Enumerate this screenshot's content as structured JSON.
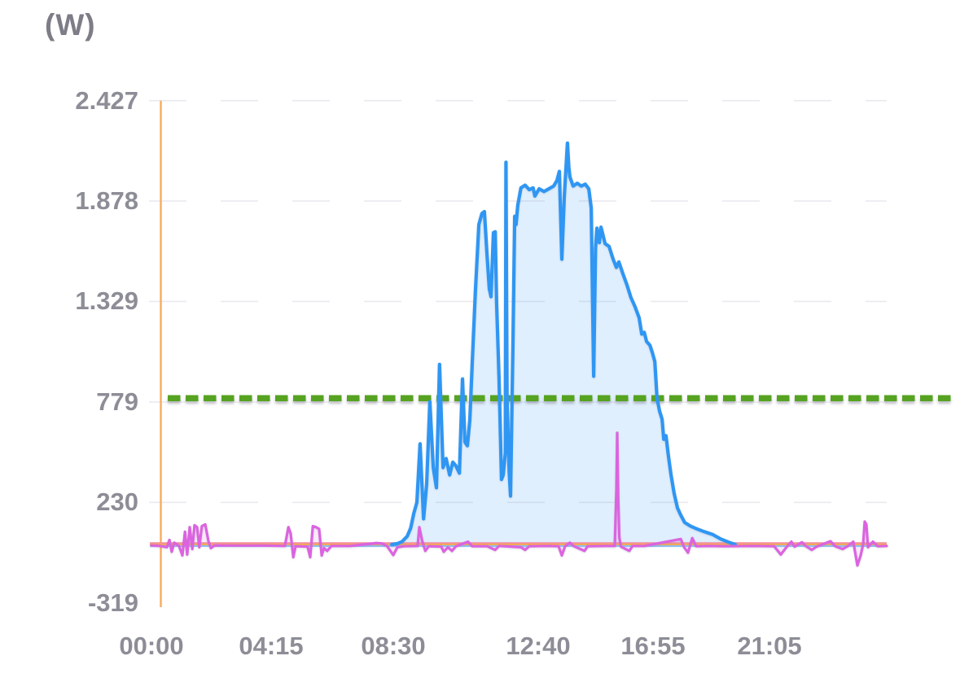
{
  "chart": {
    "unit_label": "(W)",
    "y_axis": {
      "ticks": [
        {
          "label": "2.427",
          "value": 2427,
          "grid": true
        },
        {
          "label": "1.878",
          "value": 1878,
          "grid": true
        },
        {
          "label": "1.329",
          "value": 1329,
          "grid": true
        },
        {
          "label": "779",
          "value": 779,
          "grid": true
        },
        {
          "label": "230",
          "value": 230,
          "grid": true
        },
        {
          "label": "-319",
          "value": -319,
          "grid": false
        }
      ]
    },
    "x_axis": {
      "ticks": [
        {
          "label": "00:00",
          "hour": 0
        },
        {
          "label": "04:15",
          "hour": 4.25
        },
        {
          "label": "08:30",
          "hour": 8.5
        },
        {
          "label": "12:40",
          "hour": 12.6667
        },
        {
          "label": "16:55",
          "hour": 16.9167
        },
        {
          "label": "21:05",
          "hour": 21.0833
        }
      ]
    }
  },
  "chart_data": {
    "type": "line",
    "title": "",
    "ylabel": "(W)",
    "xlabel": "",
    "x_unit": "hours_of_day",
    "y_unit": "W",
    "ylim": [
      -319,
      2427
    ],
    "grid_step": 549,
    "grid_style": "dashed",
    "legend": "none",
    "colors": {
      "axis_orange": "#F8AB5E",
      "gridline": "#E9E9EF",
      "tick_text": "#8D8D97",
      "blue_line": "#2F96F3",
      "blue_fill": "rgba(47,150,243,0.15)",
      "magenta_line": "#DC63DF",
      "magenta_fill": "rgba(220,99,223,0.13)",
      "threshold_green": "#55A320",
      "flat_salmon": "#F28E9E",
      "flat_orange": "#F8A94E",
      "flat_lightblue": "#8FBFEF"
    },
    "threshold": {
      "name": "green-dashed-threshold",
      "value": 800,
      "color": "#55A320",
      "style": "dashed"
    },
    "flat_series": [
      {
        "name": "flat-line-salmon",
        "color": "#F28E9E",
        "value": 0
      },
      {
        "name": "flat-line-orange",
        "color": "#F8A94E",
        "value": 0
      },
      {
        "name": "flat-line-lightblue",
        "color": "#8FBFEF",
        "value": 0
      }
    ],
    "series": [
      {
        "name": "blue-area-series",
        "color": "#2F96F3",
        "fill": "rgba(47,150,243,0.15)",
        "width": 4.2,
        "points": [
          [
            8.45,
            0
          ],
          [
            8.62,
            5
          ],
          [
            8.75,
            15
          ],
          [
            8.9,
            45
          ],
          [
            9.0,
            90
          ],
          [
            9.09,
            170
          ],
          [
            9.18,
            230
          ],
          [
            9.27,
            550
          ],
          [
            9.37,
            140
          ],
          [
            9.46,
            330
          ],
          [
            9.55,
            780
          ],
          [
            9.65,
            420
          ],
          [
            9.74,
            310
          ],
          [
            9.83,
            985
          ],
          [
            9.93,
            420
          ],
          [
            10.02,
            470
          ],
          [
            10.12,
            380
          ],
          [
            10.21,
            450
          ],
          [
            10.3,
            430
          ],
          [
            10.4,
            390
          ],
          [
            10.49,
            905
          ],
          [
            10.56,
            560
          ],
          [
            10.63,
            540
          ],
          [
            10.7,
            680
          ],
          [
            10.77,
            995
          ],
          [
            10.86,
            1380
          ],
          [
            10.96,
            1750
          ],
          [
            11.05,
            1810
          ],
          [
            11.12,
            1820
          ],
          [
            11.19,
            1600
          ],
          [
            11.26,
            1400
          ],
          [
            11.31,
            1355
          ],
          [
            11.38,
            1705
          ],
          [
            11.43,
            1710
          ],
          [
            11.47,
            1320
          ],
          [
            11.54,
            905
          ],
          [
            11.61,
            355
          ],
          [
            11.66,
            380
          ],
          [
            11.72,
            500
          ],
          [
            11.74,
            2090
          ],
          [
            11.77,
            800
          ],
          [
            11.83,
            400
          ],
          [
            11.87,
            265
          ],
          [
            11.94,
            1100
          ],
          [
            11.99,
            1795
          ],
          [
            12.03,
            1750
          ],
          [
            12.08,
            1855
          ],
          [
            12.17,
            1950
          ],
          [
            12.29,
            1965
          ],
          [
            12.41,
            1940
          ],
          [
            12.52,
            1950
          ],
          [
            12.57,
            1905
          ],
          [
            12.7,
            1945
          ],
          [
            12.88,
            1930
          ],
          [
            13.06,
            1945
          ],
          [
            13.24,
            1960
          ],
          [
            13.36,
            1990
          ],
          [
            13.45,
            2040
          ],
          [
            13.54,
            1560
          ],
          [
            13.63,
            1900
          ],
          [
            13.75,
            2195
          ],
          [
            13.8,
            2060
          ],
          [
            13.84,
            2010
          ],
          [
            13.96,
            1960
          ],
          [
            14.11,
            1975
          ],
          [
            14.26,
            1960
          ],
          [
            14.41,
            1970
          ],
          [
            14.54,
            1945
          ],
          [
            14.63,
            1840
          ],
          [
            14.72,
            920
          ],
          [
            14.79,
            1620
          ],
          [
            14.84,
            1730
          ],
          [
            14.93,
            1650
          ],
          [
            14.99,
            1735
          ],
          [
            15.14,
            1645
          ],
          [
            15.29,
            1630
          ],
          [
            15.44,
            1560
          ],
          [
            15.56,
            1515
          ],
          [
            15.65,
            1545
          ],
          [
            15.8,
            1480
          ],
          [
            15.95,
            1420
          ],
          [
            16.1,
            1350
          ],
          [
            16.25,
            1300
          ],
          [
            16.4,
            1240
          ],
          [
            16.5,
            1150
          ],
          [
            16.59,
            1160
          ],
          [
            16.68,
            1110
          ],
          [
            16.8,
            1090
          ],
          [
            16.89,
            1050
          ],
          [
            16.98,
            1000
          ],
          [
            17.06,
            800
          ],
          [
            17.15,
            730
          ],
          [
            17.24,
            685
          ],
          [
            17.3,
            575
          ],
          [
            17.38,
            595
          ],
          [
            17.47,
            480
          ],
          [
            17.56,
            380
          ],
          [
            17.67,
            280
          ],
          [
            17.79,
            200
          ],
          [
            17.91,
            160
          ],
          [
            18.05,
            120
          ],
          [
            18.26,
            100
          ],
          [
            18.49,
            85
          ],
          [
            18.75,
            70
          ],
          [
            19.04,
            55
          ],
          [
            19.34,
            30
          ],
          [
            19.63,
            12
          ],
          [
            19.86,
            0
          ]
        ]
      },
      {
        "name": "magenta-series",
        "color": "#DC63DF",
        "fill": "rgba(220,99,223,0.13)",
        "width": 3.2,
        "points": [
          [
            0,
            -5
          ],
          [
            0.3,
            -8
          ],
          [
            0.55,
            -15
          ],
          [
            0.64,
            25
          ],
          [
            0.72,
            -40
          ],
          [
            0.81,
            10
          ],
          [
            0.98,
            -8
          ],
          [
            1.1,
            -60
          ],
          [
            1.19,
            70
          ],
          [
            1.27,
            -55
          ],
          [
            1.36,
            95
          ],
          [
            1.45,
            -25
          ],
          [
            1.53,
            105
          ],
          [
            1.62,
            95
          ],
          [
            1.7,
            -15
          ],
          [
            1.79,
            100
          ],
          [
            1.91,
            110
          ],
          [
            2.02,
            20
          ],
          [
            2.11,
            -20
          ],
          [
            2.25,
            -5
          ],
          [
            3.0,
            -6
          ],
          [
            4.0,
            -6
          ],
          [
            4.73,
            -8
          ],
          [
            4.85,
            95
          ],
          [
            4.93,
            60
          ],
          [
            5.02,
            -70
          ],
          [
            5.1,
            -10
          ],
          [
            5.52,
            -12
          ],
          [
            5.61,
            -70
          ],
          [
            5.7,
            100
          ],
          [
            5.81,
            95
          ],
          [
            5.92,
            85
          ],
          [
            6.01,
            -60
          ],
          [
            6.09,
            -20
          ],
          [
            6.2,
            -35
          ],
          [
            6.35,
            -8
          ],
          [
            7.0,
            -8
          ],
          [
            7.77,
            5
          ],
          [
            7.9,
            8
          ],
          [
            8.1,
            6
          ],
          [
            8.28,
            -8
          ],
          [
            8.5,
            -58
          ],
          [
            8.62,
            -15
          ],
          [
            8.8,
            -10
          ],
          [
            9.2,
            -8
          ],
          [
            9.25,
            95
          ],
          [
            9.33,
            20
          ],
          [
            9.42,
            -35
          ],
          [
            9.52,
            -10
          ],
          [
            9.88,
            -12
          ],
          [
            9.95,
            -40
          ],
          [
            10.07,
            -15
          ],
          [
            10.19,
            -35
          ],
          [
            10.3,
            -10
          ],
          [
            10.65,
            15
          ],
          [
            10.77,
            -10
          ],
          [
            11.2,
            -10
          ],
          [
            11.43,
            -30
          ],
          [
            11.54,
            -8
          ],
          [
            12.17,
            -15
          ],
          [
            12.29,
            -30
          ],
          [
            12.41,
            -10
          ],
          [
            13.0,
            -8
          ],
          [
            13.42,
            -10
          ],
          [
            13.54,
            -60
          ],
          [
            13.66,
            -10
          ],
          [
            13.84,
            10
          ],
          [
            13.99,
            -10
          ],
          [
            14.38,
            -35
          ],
          [
            14.5,
            -10
          ],
          [
            15.2,
            -8
          ],
          [
            15.5,
            -8
          ],
          [
            15.56,
            300
          ],
          [
            15.59,
            610
          ],
          [
            15.63,
            250
          ],
          [
            15.67,
            40
          ],
          [
            15.73,
            -12
          ],
          [
            16.04,
            -35
          ],
          [
            16.16,
            -8
          ],
          [
            16.6,
            -8
          ],
          [
            17.91,
            30
          ],
          [
            18.03,
            -15
          ],
          [
            18.17,
            -45
          ],
          [
            18.32,
            35
          ],
          [
            18.46,
            -10
          ],
          [
            18.9,
            -8
          ],
          [
            19.5,
            -10
          ],
          [
            20.5,
            -8
          ],
          [
            21.2,
            -10
          ],
          [
            21.36,
            -55
          ],
          [
            21.5,
            -15
          ],
          [
            21.62,
            15
          ],
          [
            21.7,
            -12
          ],
          [
            21.88,
            12
          ],
          [
            21.98,
            -10
          ],
          [
            22.12,
            -30
          ],
          [
            22.24,
            -12
          ],
          [
            22.58,
            18
          ],
          [
            22.7,
            -10
          ],
          [
            22.88,
            -25
          ],
          [
            23.0,
            -10
          ],
          [
            23.14,
            15
          ],
          [
            23.24,
            -115
          ],
          [
            23.32,
            -60
          ],
          [
            23.38,
            0
          ],
          [
            23.42,
            125
          ],
          [
            23.46,
            110
          ],
          [
            23.5,
            -15
          ],
          [
            23.62,
            15
          ],
          [
            23.74,
            -10
          ],
          [
            23.96,
            -8
          ]
        ]
      }
    ]
  }
}
